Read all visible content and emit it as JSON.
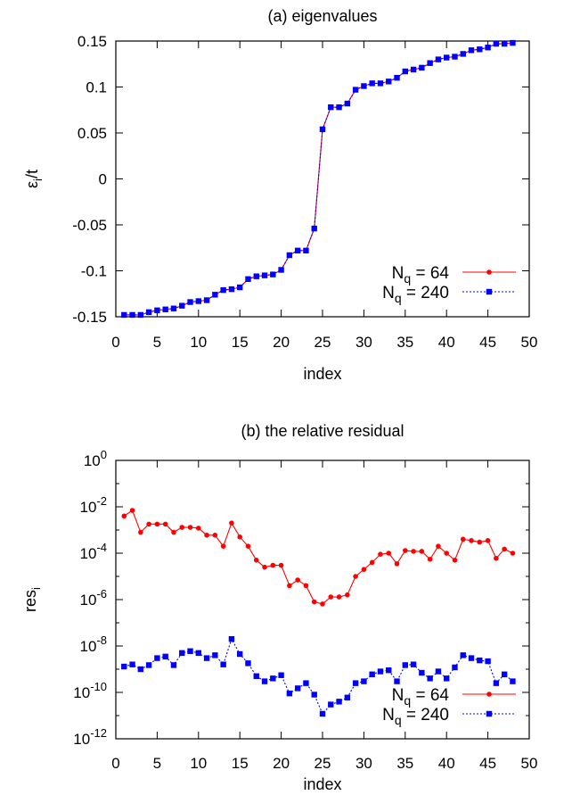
{
  "chart_data": [
    {
      "type": "line",
      "title": "(a) eigenvalues",
      "xlabel": "index",
      "ylabel_main": "ε",
      "ylabel_sub": "i",
      "ylabel_tail": "/t",
      "xlim": [
        0,
        50
      ],
      "ylim": [
        -0.15,
        0.15
      ],
      "xticks": [
        0,
        5,
        10,
        15,
        20,
        25,
        30,
        35,
        40,
        45,
        50
      ],
      "yticks": [
        -0.15,
        -0.1,
        -0.05,
        0,
        0.05,
        0.1,
        0.15
      ],
      "ytick_labels": [
        "-0.15",
        "-0.1",
        "-0.05",
        "0",
        "0.05",
        "0.1",
        "0.15"
      ],
      "grid": false,
      "legend_position": "bottom-right",
      "legend": [
        {
          "prefix": "N",
          "sub": "q",
          "suffix": " = 64"
        },
        {
          "prefix": "N",
          "sub": "q",
          "suffix": " = 240"
        }
      ],
      "x": [
        1,
        2,
        3,
        4,
        5,
        6,
        7,
        8,
        9,
        10,
        11,
        12,
        13,
        14,
        15,
        16,
        17,
        18,
        19,
        20,
        21,
        22,
        23,
        24,
        25,
        26,
        27,
        28,
        29,
        30,
        31,
        32,
        33,
        34,
        35,
        36,
        37,
        38,
        39,
        40,
        41,
        42,
        43,
        44,
        45,
        46,
        47,
        48
      ],
      "series": [
        {
          "color": "#ff0000",
          "marker": "circle",
          "dash": "solid",
          "values": [
            -0.148,
            -0.148,
            -0.148,
            -0.145,
            -0.143,
            -0.142,
            -0.141,
            -0.138,
            -0.134,
            -0.133,
            -0.132,
            -0.126,
            -0.121,
            -0.12,
            -0.118,
            -0.109,
            -0.106,
            -0.105,
            -0.104,
            -0.099,
            -0.083,
            -0.078,
            -0.078,
            -0.054,
            0.054,
            0.078,
            0.078,
            0.082,
            0.097,
            0.101,
            0.104,
            0.104,
            0.106,
            0.11,
            0.117,
            0.119,
            0.121,
            0.126,
            0.13,
            0.132,
            0.133,
            0.136,
            0.14,
            0.141,
            0.143,
            0.147,
            0.147,
            0.148
          ]
        },
        {
          "color": "#0000ff",
          "marker": "square",
          "dash": "dotted",
          "values": [
            -0.148,
            -0.148,
            -0.148,
            -0.145,
            -0.143,
            -0.142,
            -0.141,
            -0.138,
            -0.134,
            -0.133,
            -0.132,
            -0.126,
            -0.121,
            -0.12,
            -0.118,
            -0.109,
            -0.106,
            -0.105,
            -0.104,
            -0.099,
            -0.083,
            -0.078,
            -0.078,
            -0.054,
            0.054,
            0.078,
            0.078,
            0.082,
            0.097,
            0.101,
            0.104,
            0.104,
            0.106,
            0.11,
            0.117,
            0.119,
            0.121,
            0.126,
            0.13,
            0.132,
            0.133,
            0.136,
            0.14,
            0.141,
            0.143,
            0.147,
            0.147,
            0.148
          ]
        }
      ]
    },
    {
      "type": "line",
      "title": "(b) the relative residual",
      "xlabel": "index",
      "ylabel_main": "res",
      "ylabel_sub": "i",
      "ylabel_tail": "",
      "yscale": "log",
      "xlim": [
        0,
        50
      ],
      "ylim": [
        1e-12,
        1
      ],
      "xticks": [
        0,
        5,
        10,
        15,
        20,
        25,
        30,
        35,
        40,
        45,
        50
      ],
      "yticks_exp": [
        -12,
        -10,
        -8,
        -6,
        -4,
        -2,
        0
      ],
      "ytick_base": "10",
      "grid": false,
      "legend_position": "bottom-right",
      "legend": [
        {
          "prefix": "N",
          "sub": "q",
          "suffix": " = 64"
        },
        {
          "prefix": "N",
          "sub": "q",
          "suffix": " = 240"
        }
      ],
      "x": [
        1,
        2,
        3,
        4,
        5,
        6,
        7,
        8,
        9,
        10,
        11,
        12,
        13,
        14,
        15,
        16,
        17,
        18,
        19,
        20,
        21,
        22,
        23,
        24,
        25,
        26,
        27,
        28,
        29,
        30,
        31,
        32,
        33,
        34,
        35,
        36,
        37,
        38,
        39,
        40,
        41,
        42,
        43,
        44,
        45,
        46,
        47,
        48
      ],
      "series": [
        {
          "color": "#ff0000",
          "marker": "circle",
          "dash": "solid",
          "values": [
            0.004,
            0.007,
            0.0008,
            0.0018,
            0.0018,
            0.0018,
            0.0008,
            0.0013,
            0.0013,
            0.0012,
            0.0006,
            0.0006,
            0.0002,
            0.002,
            0.0005,
            0.0002,
            5e-05,
            2.5e-05,
            3e-05,
            3e-05,
            4e-06,
            7e-06,
            4e-06,
            8e-07,
            6.5e-07,
            1.3e-06,
            1.3e-06,
            1.6e-06,
            1e-05,
            2e-05,
            4e-05,
            9e-05,
            0.0001,
            3.5e-05,
            0.00013,
            0.00012,
            0.00012,
            5.5e-05,
            0.0002,
            0.0001,
            5e-05,
            0.0004,
            0.00035,
            0.0003,
            0.00035,
            6e-05,
            0.00015,
            0.0001
          ]
        },
        {
          "color": "#0000ff",
          "marker": "square",
          "dash": "dotted",
          "values": [
            1.3e-09,
            1.6e-09,
            1e-09,
            1.5e-09,
            3e-09,
            3.5e-09,
            1.5e-09,
            5e-09,
            6e-09,
            5e-09,
            3e-09,
            4e-09,
            1.6e-09,
            2e-08,
            4.5e-09,
            1.8e-09,
            5e-10,
            3e-10,
            4e-10,
            5.5e-10,
            9e-11,
            1.5e-10,
            2.5e-10,
            8e-11,
            1.2e-11,
            3e-11,
            4e-11,
            6e-11,
            2.5e-10,
            3e-10,
            6e-10,
            8e-10,
            9e-10,
            3e-10,
            1.5e-09,
            1.6e-09,
            7e-10,
            4e-10,
            8e-10,
            4e-10,
            1.2e-09,
            4e-09,
            3e-09,
            2.4e-09,
            2.2e-09,
            2.5e-10,
            6e-10,
            3e-10
          ]
        }
      ]
    }
  ]
}
